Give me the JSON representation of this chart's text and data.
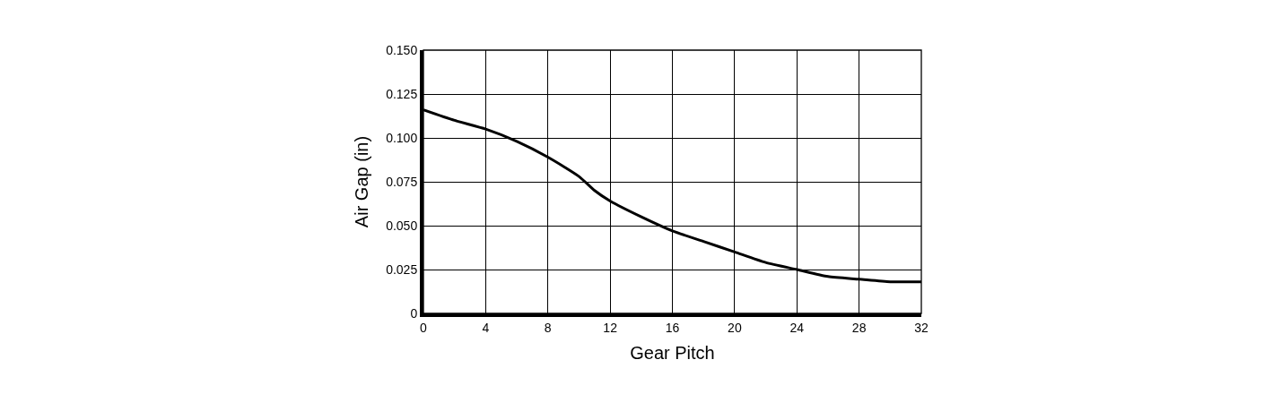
{
  "chart_data": {
    "type": "line",
    "xlabel": "Gear Pitch",
    "ylabel": "Air Gap (in)",
    "x": [
      0,
      2,
      4,
      6,
      8,
      10,
      11,
      12,
      14,
      16,
      18,
      20,
      22,
      24,
      26,
      28,
      30,
      32
    ],
    "series": [
      {
        "color": "#000000",
        "values": [
          0.116,
          0.11,
          0.105,
          0.098,
          0.089,
          0.078,
          0.07,
          0.064,
          0.055,
          0.047,
          0.041,
          0.035,
          0.029,
          0.025,
          0.021,
          0.0195,
          0.018,
          0.018
        ]
      }
    ],
    "xlim": [
      0,
      32
    ],
    "xticks": [
      0,
      4,
      8,
      12,
      16,
      20,
      24,
      28,
      32
    ],
    "ylim": [
      0,
      0.15
    ],
    "yticks": [
      {
        "value": 0,
        "label": "0"
      },
      {
        "value": 0.025,
        "label": "0.025"
      },
      {
        "value": 0.05,
        "label": "0.050"
      },
      {
        "value": 0.075,
        "label": "0.075"
      },
      {
        "value": 0.1,
        "label": "0.100"
      },
      {
        "value": 0.125,
        "label": "0.125"
      },
      {
        "value": 0.15,
        "label": "0.150"
      }
    ],
    "grid": true,
    "legend": false,
    "marker": "none",
    "line_style": "solid"
  }
}
